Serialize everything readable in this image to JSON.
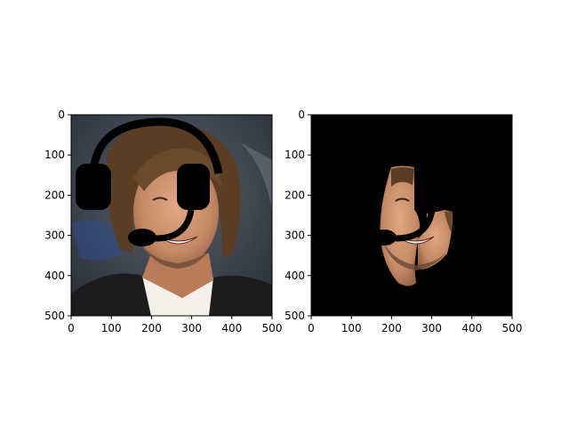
{
  "chart_data": [
    {
      "type": "image",
      "panel": "left",
      "content": "photo of smiling man with shoulder-length brown hair, dark jacket and white shirt, overlaid with a black headset (headband, two ear cups, boom microphone)",
      "xlim": [
        0,
        500
      ],
      "ylim": [
        500,
        0
      ],
      "xticks": [
        0,
        100,
        200,
        300,
        400,
        500
      ],
      "yticks": [
        0,
        100,
        200,
        300,
        400,
        500
      ]
    },
    {
      "type": "image",
      "panel": "right",
      "content": "segmentation mask result: black background with only a visible region of the face (cheek, smile, beard) cut out; headset microphone arc cuts through the face",
      "xlim": [
        0,
        500
      ],
      "ylim": [
        500,
        0
      ],
      "xticks": [
        0,
        100,
        200,
        300,
        400,
        500
      ],
      "yticks": [
        0,
        100,
        200,
        300,
        400,
        500
      ]
    }
  ],
  "colors": {
    "axis": "#000000",
    "mask_background": "#000000",
    "headset": "#000000",
    "skin": "#c98e6b",
    "hair": "#5a3d22",
    "photo_background": "#4a4f55"
  }
}
